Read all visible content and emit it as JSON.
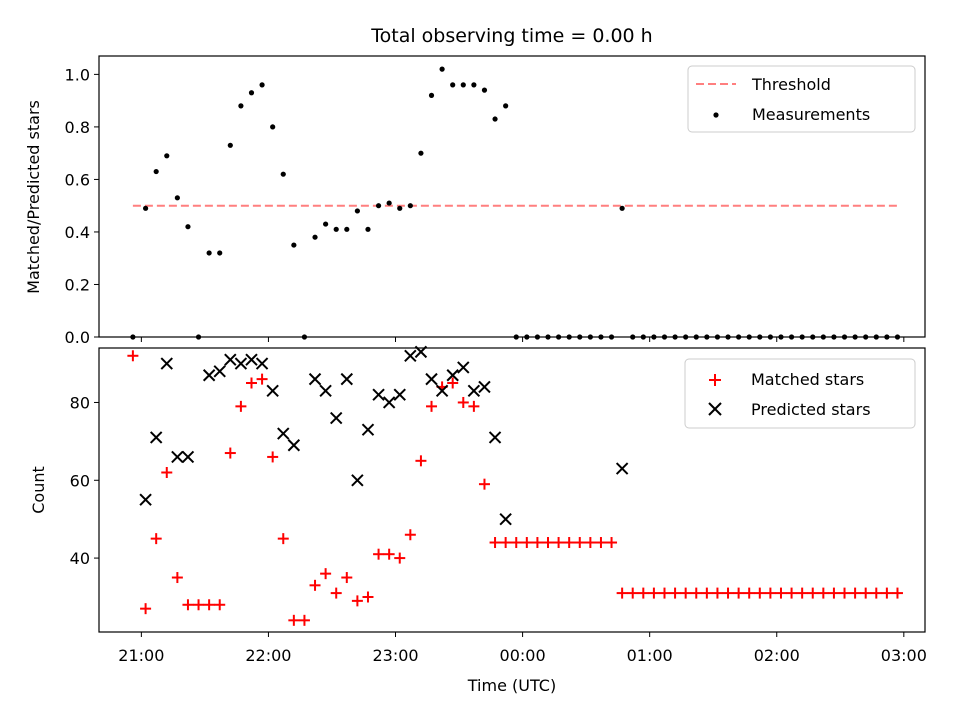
{
  "title": "Total observing time = 0.00 h",
  "xlabel": "Time (UTC)",
  "colors": {
    "threshold": "#ff7f7f",
    "measurements": "#000000",
    "matched": "#ff0000",
    "predicted": "#000000"
  },
  "chart_data": [
    {
      "type": "scatter",
      "ylabel": "Matched/Predicted stars",
      "ylim": [
        0,
        1.07
      ],
      "yticks": [
        "0.0",
        "0.2",
        "0.4",
        "0.6",
        "0.8",
        "1.0"
      ],
      "xlim": [
        "20:40",
        "03:10"
      ],
      "legend": "top-right",
      "threshold": {
        "name": "Threshold",
        "value": 0.5,
        "x_start": "20:56",
        "x_end": "02:57"
      },
      "series": [
        {
          "name": "Measurements",
          "x": [
            "20:56",
            "21:02",
            "21:07",
            "21:12",
            "21:17",
            "21:22",
            "21:27",
            "21:32",
            "21:37",
            "21:42",
            "21:47",
            "21:52",
            "21:57",
            "22:02",
            "22:07",
            "22:12",
            "22:17",
            "22:22",
            "22:27",
            "22:32",
            "22:37",
            "22:42",
            "22:47",
            "22:52",
            "22:57",
            "23:02",
            "23:07",
            "23:12",
            "23:17",
            "23:22",
            "23:27",
            "23:32",
            "23:37",
            "23:42",
            "23:47",
            "23:52",
            "23:57",
            "00:02",
            "00:07",
            "00:12",
            "00:17",
            "00:22",
            "00:27",
            "00:32",
            "00:37",
            "00:42",
            "00:47",
            "00:52",
            "00:57",
            "01:02",
            "01:07",
            "01:12",
            "01:17",
            "01:22",
            "01:27",
            "01:32",
            "01:37",
            "01:42",
            "01:47",
            "01:52",
            "01:57",
            "02:02",
            "02:07",
            "02:12",
            "02:17",
            "02:22",
            "02:27",
            "02:32",
            "02:37",
            "02:42",
            "02:47",
            "02:52",
            "02:57"
          ],
          "y": [
            0.0,
            0.49,
            0.63,
            0.69,
            0.53,
            0.42,
            0.0,
            0.32,
            0.32,
            0.73,
            0.88,
            0.93,
            0.96,
            0.8,
            0.62,
            0.35,
            0.0,
            0.38,
            0.43,
            0.41,
            0.41,
            0.48,
            0.41,
            0.5,
            0.51,
            0.49,
            0.5,
            0.7,
            0.92,
            1.02,
            0.96,
            0.96,
            0.96,
            0.94,
            0.83,
            0.88,
            0.0,
            0.0,
            0.0,
            0.0,
            0.0,
            0.0,
            0.0,
            0.0,
            0.0,
            0.0,
            0.49,
            0.0,
            0.0,
            0.0,
            0.0,
            0.0,
            0.0,
            0.0,
            0.0,
            0.0,
            0.0,
            0.0,
            0.0,
            0.0,
            0.0,
            0.0,
            0.0,
            0.0,
            0.0,
            0.0,
            0.0,
            0.0,
            0.0,
            0.0,
            0.0,
            0.0,
            0.0
          ]
        }
      ]
    },
    {
      "type": "scatter",
      "ylabel": "Count",
      "ylim": [
        21,
        94
      ],
      "yticks": [
        "40",
        "60",
        "80"
      ],
      "xlim": [
        "20:40",
        "03:10"
      ],
      "xticks": [
        "21:00",
        "22:00",
        "23:00",
        "00:00",
        "01:00",
        "02:00",
        "03:00"
      ],
      "legend": "top-right",
      "series": [
        {
          "name": "Matched stars",
          "x": [
            "20:56",
            "21:02",
            "21:07",
            "21:12",
            "21:17",
            "21:22",
            "21:27",
            "21:32",
            "21:37",
            "21:42",
            "21:47",
            "21:52",
            "21:57",
            "22:02",
            "22:07",
            "22:12",
            "22:17",
            "22:22",
            "22:27",
            "22:32",
            "22:37",
            "22:42",
            "22:47",
            "22:52",
            "22:57",
            "23:02",
            "23:07",
            "23:12",
            "23:17",
            "23:22",
            "23:27",
            "23:32",
            "23:37",
            "23:42",
            "23:47",
            "23:52",
            "23:57",
            "00:02",
            "00:07",
            "00:12",
            "00:17",
            "00:22",
            "00:27",
            "00:32",
            "00:37",
            "00:42",
            "00:47",
            "00:52",
            "00:57",
            "01:02",
            "01:07",
            "01:12",
            "01:17",
            "01:22",
            "01:27",
            "01:32",
            "01:37",
            "01:42",
            "01:47",
            "01:52",
            "01:57",
            "02:02",
            "02:07",
            "02:12",
            "02:17",
            "02:22",
            "02:27",
            "02:32",
            "02:37",
            "02:42",
            "02:47",
            "02:52",
            "02:57"
          ],
          "y": [
            92,
            27,
            45,
            62,
            35,
            28,
            28,
            28,
            28,
            67,
            79,
            85,
            86,
            66,
            45,
            24,
            24,
            33,
            36,
            31,
            35,
            29,
            30,
            41,
            41,
            40,
            46,
            65,
            79,
            84,
            85,
            80,
            79,
            59,
            44,
            44,
            44,
            44,
            44,
            44,
            44,
            44,
            44,
            44,
            44,
            44,
            31,
            31,
            31,
            31,
            31,
            31,
            31,
            31,
            31,
            31,
            31,
            31,
            31,
            31,
            31,
            31,
            31,
            31,
            31,
            31,
            31,
            31,
            31,
            31,
            31,
            31,
            31
          ]
        },
        {
          "name": "Predicted stars",
          "x": [
            "21:02",
            "21:07",
            "21:12",
            "21:17",
            "21:22",
            "21:32",
            "21:37",
            "21:42",
            "21:47",
            "21:52",
            "21:57",
            "22:02",
            "22:07",
            "22:12",
            "22:22",
            "22:27",
            "22:32",
            "22:37",
            "22:42",
            "22:47",
            "22:52",
            "22:57",
            "23:02",
            "23:07",
            "23:12",
            "23:17",
            "23:22",
            "23:27",
            "23:32",
            "23:37",
            "23:42",
            "23:47",
            "23:52",
            "00:47"
          ],
          "y": [
            55,
            71,
            90,
            66,
            66,
            87,
            88,
            91,
            90,
            91,
            90,
            83,
            72,
            69,
            86,
            83,
            76,
            86,
            60,
            73,
            82,
            80,
            82,
            92,
            93,
            86,
            83,
            87,
            89,
            83,
            84,
            71,
            50,
            63
          ]
        }
      ]
    }
  ]
}
